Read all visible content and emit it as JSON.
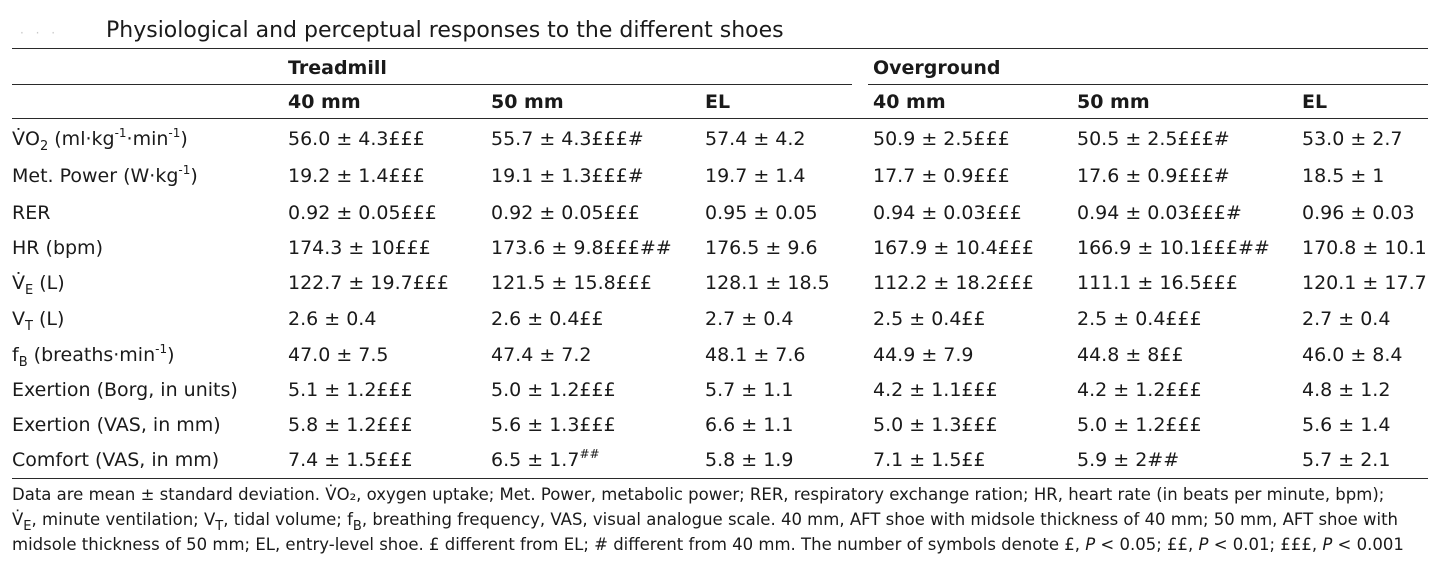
{
  "table": {
    "title": "Physiological and perceptual responses to the different shoes",
    "groups": [
      "Treadmill",
      "Overground"
    ],
    "columns": [
      "40 mm",
      "50 mm",
      "EL",
      "40 mm",
      "50 mm",
      "EL"
    ],
    "rows": [
      {
        "label_main": "V̇O",
        "label_sub": "2",
        "label_tail": " (ml·kg",
        "label_sup1": "-1",
        "label_mid": "·min",
        "label_sup2": "-1",
        "label_end": ")",
        "values": [
          "56.0 ± 4.3£££",
          "55.7 ± 4.3£££#",
          "57.4 ± 4.2",
          "50.9 ± 2.5£££",
          "50.5 ± 2.5£££#",
          "53.0 ± 2.7"
        ]
      },
      {
        "label_main": "Met. Power (W·kg",
        "label_sup1": "-1",
        "label_end": ")",
        "values": [
          "19.2 ± 1.4£££",
          "19.1 ± 1.3£££#",
          "19.7 ± 1.4",
          "17.7 ± 0.9£££",
          "17.6 ± 0.9£££#",
          "18.5 ± 1"
        ]
      },
      {
        "label_main": "RER",
        "values": [
          "0.92 ± 0.05£££",
          "0.92 ± 0.05£££",
          "0.95 ± 0.05",
          "0.94 ± 0.03£££",
          "0.94 ± 0.03£££#",
          "0.96 ± 0.03"
        ]
      },
      {
        "label_main": "HR (bpm)",
        "values": [
          "174.3 ± 10£££",
          "173.6 ± 9.8£££##",
          "176.5 ± 9.6",
          "167.9 ± 10.4£££",
          "166.9 ± 10.1£££##",
          "170.8 ± 10.1"
        ]
      },
      {
        "label_main": "V̇",
        "label_sub": "E",
        "label_tail": " (L)",
        "values": [
          "122.7 ± 19.7£££",
          "121.5 ± 15.8£££",
          "128.1 ± 18.5",
          "112.2 ± 18.2£££",
          "111.1 ± 16.5£££",
          "120.1 ± 17.7"
        ]
      },
      {
        "label_main": "V",
        "label_sub": "T",
        "label_tail": " (L)",
        "values": [
          "2.6 ± 0.4",
          "2.6 ± 0.4££",
          "2.7 ± 0.4",
          "2.5 ± 0.4££",
          "2.5 ± 0.4£££",
          "2.7 ± 0.4"
        ]
      },
      {
        "label_main": "f",
        "label_sub": "B",
        "label_tail": " (breaths·min",
        "label_sup1": "-1",
        "label_end": ")",
        "values": [
          "47.0 ± 7.5",
          "47.4 ± 7.2",
          "48.1 ± 7.6",
          "44.9 ± 7.9",
          "44.8 ± 8££",
          "46.0 ± 8.4"
        ]
      },
      {
        "label_main": "Exertion (Borg, in units)",
        "values": [
          "5.1 ± 1.2£££",
          "5.0 ± 1.2£££",
          "5.7 ± 1.1",
          "4.2 ± 1.1£££",
          "4.2 ± 1.2£££",
          "4.8 ± 1.2"
        ]
      },
      {
        "label_main": "Exertion (VAS, in mm)",
        "values": [
          "5.8 ± 1.2£££",
          "5.6 ± 1.3£££",
          "6.6 ± 1.1",
          "5.0 ± 1.3£££",
          "5.0 ± 1.2£££",
          "5.6 ± 1.4"
        ]
      },
      {
        "label_main": "Comfort (VAS, in mm)",
        "values": [
          "7.4 ± 1.5£££",
          "6.5 ± 1.7",
          "5.8 ± 1.9",
          "7.1 ± 1.5££",
          "5.9 ± 2##",
          "5.7 ± 2.1"
        ],
        "value_sup": {
          "1": "##"
        }
      }
    ]
  },
  "footnote": {
    "line1": "Data are mean ± standard deviation. V̇O₂, oxygen uptake; Met. Power, metabolic power; RER, respiratory exchange ration; HR, heart rate (in beats per minute, bpm);",
    "line2_a": "V̇",
    "line2_sub1": "E",
    "line2_b": ", minute ventilation; V",
    "line2_sub2": "T",
    "line2_c": ", tidal volume; f",
    "line2_sub3": "B",
    "line2_d": ", breathing frequency, VAS, visual analogue scale. 40 mm, AFT shoe with midsole thickness of 40 mm; 50 mm, AFT shoe with",
    "line3_a": "midsole thickness of 50 mm; EL, entry-level shoe. £ different from EL; # different from 40 mm. The number of symbols denote £, ",
    "p1": "P",
    "line3_b": " < 0.05; ££, ",
    "p2": "P",
    "line3_c": " < 0.01; £££, ",
    "p3": "P",
    "line3_d": " < 0.001"
  }
}
